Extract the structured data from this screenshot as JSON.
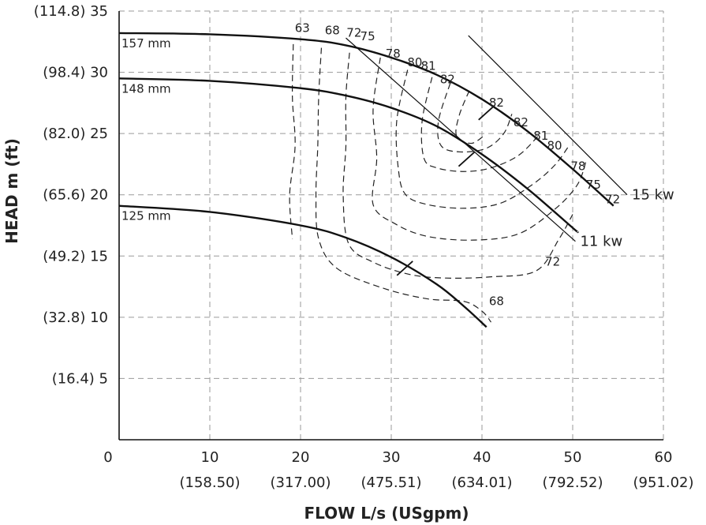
{
  "chart_data": {
    "type": "line",
    "title": "",
    "xlabel": "FLOW L/s (USgpm)",
    "ylabel": "HEAD m (ft)",
    "xlim": [
      0,
      60
    ],
    "ylim": [
      0,
      35
    ],
    "grid": true,
    "x_ticks": [
      {
        "value": 0,
        "label": "0",
        "secondary": ""
      },
      {
        "value": 10,
        "label": "10",
        "secondary": "(158.50)"
      },
      {
        "value": 20,
        "label": "20",
        "secondary": "(317.00)"
      },
      {
        "value": 30,
        "label": "30",
        "secondary": "(475.51)"
      },
      {
        "value": 40,
        "label": "40",
        "secondary": "(634.01)"
      },
      {
        "value": 50,
        "label": "50",
        "secondary": "(792.52)"
      },
      {
        "value": 60,
        "label": "60",
        "secondary": "(951.02)"
      }
    ],
    "y_ticks": [
      {
        "value": 5,
        "label": "(16.4) 5"
      },
      {
        "value": 10,
        "label": "(32.8) 10"
      },
      {
        "value": 15,
        "label": "(49.2) 15"
      },
      {
        "value": 20,
        "label": "(65.6) 20"
      },
      {
        "value": 25,
        "label": "(82.0) 25"
      },
      {
        "value": 30,
        "label": "(98.4) 30"
      },
      {
        "value": 35,
        "label": "(114.8) 35"
      }
    ],
    "impeller_curves": [
      {
        "name": "157  mm",
        "points": [
          [
            0,
            33.2
          ],
          [
            10,
            33.1
          ],
          [
            20,
            32.7
          ],
          [
            25,
            32.2
          ],
          [
            30,
            31.2
          ],
          [
            35,
            29.8
          ],
          [
            40,
            27.8
          ],
          [
            45,
            25.2
          ],
          [
            50,
            22.1
          ],
          [
            54.5,
            19.1
          ]
        ]
      },
      {
        "name": "148  mm",
        "points": [
          [
            0,
            29.5
          ],
          [
            10,
            29.3
          ],
          [
            20,
            28.7
          ],
          [
            25,
            28.1
          ],
          [
            30,
            27.1
          ],
          [
            35,
            25.6
          ],
          [
            40,
            23.3
          ],
          [
            45,
            20.5
          ],
          [
            50,
            17.3
          ],
          [
            50.5,
            17.0
          ]
        ]
      },
      {
        "name": "125  mm",
        "points": [
          [
            0,
            19.1
          ],
          [
            10,
            18.6
          ],
          [
            20,
            17.5
          ],
          [
            25,
            16.5
          ],
          [
            30,
            14.9
          ],
          [
            35,
            12.7
          ],
          [
            38,
            10.9
          ],
          [
            40.5,
            9.2
          ]
        ]
      }
    ],
    "power_lines": [
      {
        "name": "15 kw",
        "points": [
          [
            38.5,
            33.0
          ],
          [
            56,
            20.0
          ]
        ]
      },
      {
        "name": "11 kw",
        "points": [
          [
            25,
            32.8
          ],
          [
            50.3,
            16.2
          ]
        ]
      }
    ],
    "efficiency_contours": [
      {
        "label": "63",
        "points": [
          [
            19.2,
            32.3
          ],
          [
            19.1,
            28
          ],
          [
            19.4,
            24
          ],
          [
            18.8,
            20
          ],
          [
            19.1,
            16.4
          ]
        ]
      },
      {
        "label": "68",
        "points": [
          [
            22.3,
            32.0
          ],
          [
            22,
            28
          ],
          [
            21.9,
            24
          ],
          [
            21.7,
            20
          ],
          [
            22.0,
            16.4
          ],
          [
            24,
            14.0
          ],
          [
            29,
            12.4
          ],
          [
            34,
            11.5
          ],
          [
            38,
            11.3
          ],
          [
            40,
            10.5
          ],
          [
            41,
            9.6
          ]
        ]
      },
      {
        "label": "72",
        "points": [
          [
            25.4,
            31.6
          ],
          [
            25,
            28
          ],
          [
            25,
            24
          ],
          [
            24.7,
            20
          ],
          [
            25.3,
            16.0
          ],
          [
            28,
            14.5
          ],
          [
            32,
            13.5
          ],
          [
            36,
            13.2
          ],
          [
            41,
            13.3
          ],
          [
            46,
            13.8
          ],
          [
            48.5,
            16.4
          ],
          [
            50,
            18.4
          ]
        ]
      },
      {
        "label": "75",
        "points": [
          [
            28.8,
            31.2
          ],
          [
            28,
            27
          ],
          [
            28.4,
            23
          ],
          [
            28,
            19.2
          ],
          [
            30.5,
            17.6
          ],
          [
            34,
            16.6
          ],
          [
            39,
            16.3
          ],
          [
            44,
            16.8
          ],
          [
            48,
            18.8
          ],
          [
            50.5,
            20.8
          ],
          [
            51.5,
            22.8
          ]
        ]
      },
      {
        "label": "78",
        "points": [
          [
            31.8,
            30.2
          ],
          [
            30.6,
            26
          ],
          [
            30.8,
            22
          ],
          [
            31.6,
            20
          ],
          [
            34,
            19.2
          ],
          [
            38,
            18.9
          ],
          [
            42,
            19.3
          ],
          [
            45.5,
            20.8
          ],
          [
            48,
            22.4
          ],
          [
            49.5,
            23.9
          ]
        ]
      },
      {
        "label": "80",
        "points": [
          [
            34.5,
            29.6
          ],
          [
            33.4,
            26
          ],
          [
            33.6,
            23
          ],
          [
            35,
            22.2
          ],
          [
            38,
            21.9
          ],
          [
            41,
            22.2
          ],
          [
            44,
            23.2
          ],
          [
            46.2,
            24.8
          ]
        ]
      },
      {
        "label": "81",
        "points": [
          [
            36.5,
            29.1
          ],
          [
            35.2,
            26
          ],
          [
            35.5,
            24
          ],
          [
            37.6,
            23.5
          ],
          [
            40.5,
            23.8
          ],
          [
            42.4,
            25.0
          ],
          [
            43.3,
            26.6
          ]
        ]
      },
      {
        "label": "82",
        "points": [
          [
            38.6,
            28.5
          ],
          [
            37.5,
            26.5
          ],
          [
            37.2,
            24.8
          ],
          [
            38.8,
            24.2
          ],
          [
            40.2,
            24.8
          ]
        ]
      }
    ],
    "contour_labels": [
      {
        "text": "63",
        "x": 20.2,
        "y": 33.3
      },
      {
        "text": "68",
        "x": 23.5,
        "y": 33.1
      },
      {
        "text": "72",
        "x": 25.9,
        "y": 32.9
      },
      {
        "text": "75",
        "x": 27.4,
        "y": 32.6
      },
      {
        "text": "78",
        "x": 30.2,
        "y": 31.2
      },
      {
        "text": "80",
        "x": 32.6,
        "y": 30.5
      },
      {
        "text": "81",
        "x": 34.1,
        "y": 30.2
      },
      {
        "text": "82",
        "x": 36.2,
        "y": 29.1
      },
      {
        "text": "82",
        "x": 41.6,
        "y": 27.2
      },
      {
        "text": "82",
        "x": 44.3,
        "y": 25.6
      },
      {
        "text": "81",
        "x": 46.5,
        "y": 24.5
      },
      {
        "text": "80",
        "x": 48.0,
        "y": 23.7
      },
      {
        "text": "78",
        "x": 50.6,
        "y": 22.0
      },
      {
        "text": "75",
        "x": 52.3,
        "y": 20.5
      },
      {
        "text": "72",
        "x": 54.4,
        "y": 19.3
      },
      {
        "text": "72",
        "x": 47.8,
        "y": 14.2
      },
      {
        "text": "68",
        "x": 41.6,
        "y": 11.0
      }
    ],
    "bep_marks": [
      {
        "x": 40.5,
        "y": 26.7
      },
      {
        "x": 38.3,
        "y": 22.9
      },
      {
        "x": 31.5,
        "y": 14.0
      }
    ]
  }
}
